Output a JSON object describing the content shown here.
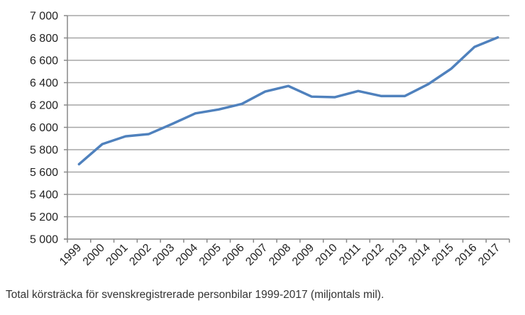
{
  "chart_data": {
    "type": "line",
    "title": "",
    "xlabel": "",
    "ylabel": "",
    "categories": [
      "1999",
      "2000",
      "2001",
      "2002",
      "2003",
      "2004",
      "2005",
      "2006",
      "2007",
      "2008",
      "2009",
      "2010",
      "2011",
      "2012",
      "2013",
      "2014",
      "2015",
      "2016",
      "2017"
    ],
    "series": [
      {
        "name": "Total körsträcka",
        "values": [
          5670,
          5850,
          5920,
          5940,
          6030,
          6125,
          6160,
          6210,
          6320,
          6370,
          6275,
          6270,
          6325,
          6280,
          6280,
          6385,
          6525,
          6720,
          6805
        ],
        "color": "#4f81bd"
      }
    ],
    "ylim": [
      5000,
      7000
    ],
    "yticks": [
      5000,
      5200,
      5400,
      5600,
      5800,
      6000,
      6200,
      6400,
      6600,
      6800,
      7000
    ],
    "ytick_labels": [
      "5 000",
      "5 200",
      "5 400",
      "5 600",
      "5 800",
      "6 000",
      "6 200",
      "6 400",
      "6 600",
      "6 800",
      "7 000"
    ],
    "grid": true,
    "legend": "none"
  },
  "caption": "Total körsträcka för svenskregistrerade personbilar 1999-2017 (miljontals mil)."
}
